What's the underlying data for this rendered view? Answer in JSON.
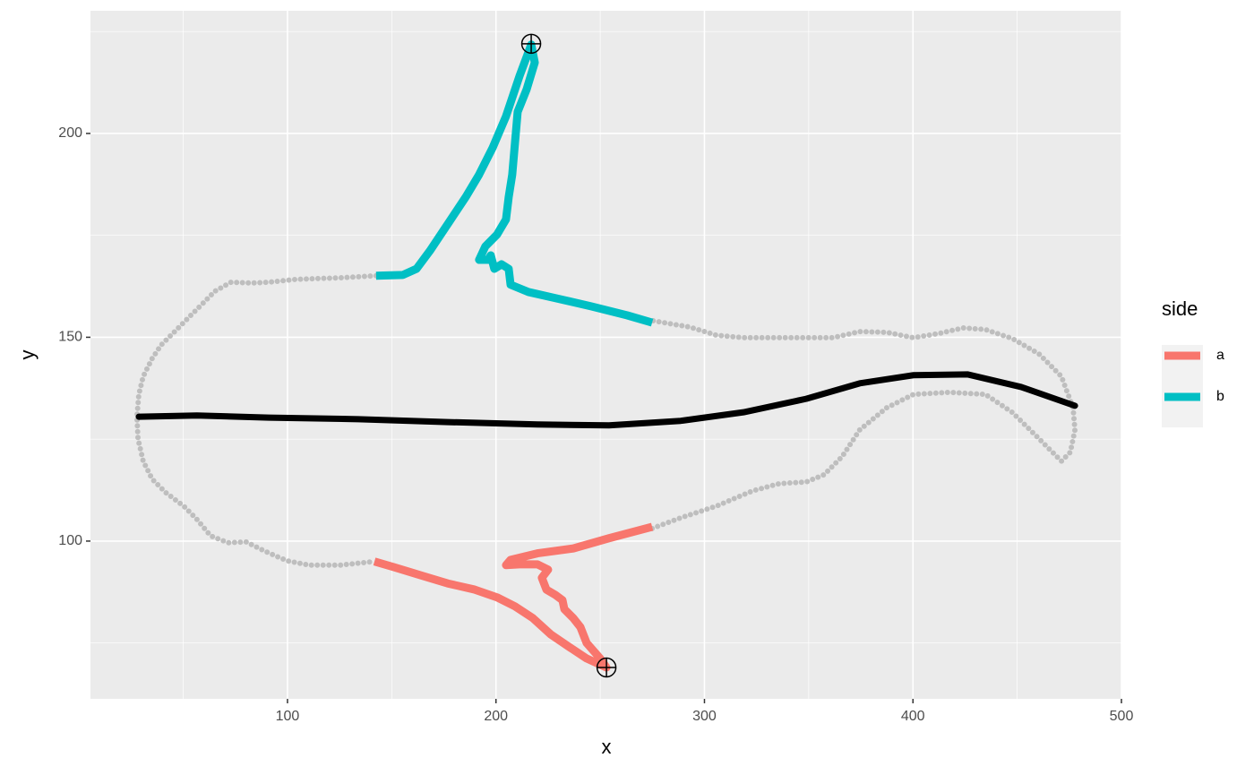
{
  "chart_data": {
    "type": "path",
    "xlabel": "x",
    "ylabel": "y",
    "legend_title": "side",
    "xlim": [
      5.5,
      500
    ],
    "ylim": [
      61.3,
      230.1
    ],
    "xticks": [
      100,
      200,
      300,
      400,
      500
    ],
    "yticks": [
      100,
      150,
      200
    ],
    "xminor": [
      50,
      150,
      250,
      350,
      450
    ],
    "yminor": [
      75,
      125,
      175,
      225
    ],
    "grid": true,
    "legend": "right",
    "outline_color": "#BEBEBE",
    "outline": [
      {
        "x": [
          142.5,
          125.3,
          103.9,
          91.0,
          82.4,
          72.9,
          65.2,
          58.8,
          52.3,
          45.9,
          39.4,
          35.1,
          30.8,
          28.7,
          27.8,
          28.3,
          30.8,
          35.1,
          41.6,
          50.2,
          56.6,
          63.1,
          71.6,
          80.2,
          88.8,
          99.6,
          110.3,
          125.3,
          141.7
        ],
        "y": [
          165.1,
          164.6,
          164.2,
          163.5,
          163.3,
          163.5,
          161.3,
          158.0,
          154.7,
          151.4,
          148.1,
          144.8,
          140.4,
          136.0,
          130.5,
          125.1,
          119.6,
          115.2,
          111.9,
          108.6,
          105.3,
          101.3,
          99.6,
          99.8,
          97.6,
          95.2,
          94.1,
          94.1,
          95.0
        ]
      },
      {
        "x": [
          274.9,
          288.6,
          305.8,
          323.0,
          335.9,
          348.8,
          357.4,
          366.0,
          374.5,
          387.4,
          400.3,
          417.5,
          434.7,
          447.6,
          460.5,
          471.2,
          475.5,
          477.7,
          476.8,
          471.2,
          460.5,
          447.6,
          434.7,
          424.0,
          413.2,
          400.3,
          387.4,
          374.5,
          361.7,
          340.2,
          318.7,
          305.8,
          292.9,
          274.9
        ],
        "y": [
          103.1,
          105.7,
          108.6,
          112.3,
          114.1,
          114.5,
          116.3,
          120.7,
          127.3,
          132.7,
          136.0,
          136.5,
          136.0,
          131.6,
          125.1,
          119.6,
          121.8,
          127.3,
          132.7,
          140.4,
          145.9,
          149.7,
          151.9,
          152.3,
          151.0,
          149.9,
          151.2,
          151.4,
          149.9,
          149.9,
          149.9,
          150.5,
          152.5,
          154.1
        ]
      }
    ],
    "series": [
      {
        "name": "a",
        "color": "#F8766D",
        "x": [
          141.7,
          151.1,
          164.0,
          176.9,
          189.8,
          200.5,
          209.1,
          217.7,
          226.3,
          234.9,
          243.5,
          253.0,
          250.0,
          243.5,
          240.5,
          237.1,
          232.8,
          231.9,
          228.5,
          224.2,
          222.0,
          225.0,
          219.9,
          211.3,
          204.8,
          207.0,
          219.9,
          237.1,
          254.2,
          274.9
        ],
        "y": [
          95.0,
          93.6,
          91.6,
          89.6,
          88.1,
          86.2,
          84.0,
          81.1,
          77.1,
          74.1,
          71.2,
          69.0,
          71.2,
          75.0,
          78.9,
          81.1,
          83.3,
          85.5,
          86.8,
          88.1,
          91.0,
          93.0,
          94.3,
          94.3,
          94.1,
          95.4,
          97.0,
          98.2,
          100.7,
          103.5
        ]
      },
      {
        "name": "b",
        "color": "#00BFC4",
        "x": [
          142.5,
          155.4,
          161.9,
          168.3,
          176.9,
          185.5,
          191.9,
          198.4,
          204.8,
          211.3,
          216.9,
          218.6,
          214.7,
          210.4,
          209.1,
          207.8,
          206.1,
          204.8,
          200.5,
          194.9,
          191.9,
          196.2,
          197.5,
          199.2,
          202.7,
          206.1,
          207.0,
          215.6,
          228.5,
          245.6,
          262.8,
          274.9
        ],
        "y": [
          165.1,
          165.3,
          166.8,
          171.2,
          177.8,
          184.4,
          189.9,
          196.5,
          204.2,
          214.1,
          221.8,
          217.4,
          210.8,
          205.3,
          197.6,
          189.9,
          184.4,
          178.9,
          175.2,
          172.3,
          169.0,
          169.0,
          170.1,
          166.8,
          167.9,
          166.8,
          162.9,
          161.1,
          159.6,
          157.6,
          155.4,
          153.6
        ]
      }
    ],
    "midline": {
      "color": "#000000",
      "x": [
        28.7,
        56.6,
        91.0,
        133.9,
        176.9,
        219.9,
        254.2,
        288.6,
        318.7,
        348.8,
        374.5,
        400.3,
        426.1,
        451.9,
        477.7
      ],
      "y": [
        130.5,
        130.8,
        130.3,
        129.9,
        129.2,
        128.6,
        128.4,
        129.5,
        131.6,
        134.9,
        138.7,
        140.7,
        140.9,
        137.8,
        133.2
      ]
    },
    "points": {
      "x": [
        216.9,
        253.0
      ],
      "y": [
        222.0,
        69.0
      ]
    }
  }
}
